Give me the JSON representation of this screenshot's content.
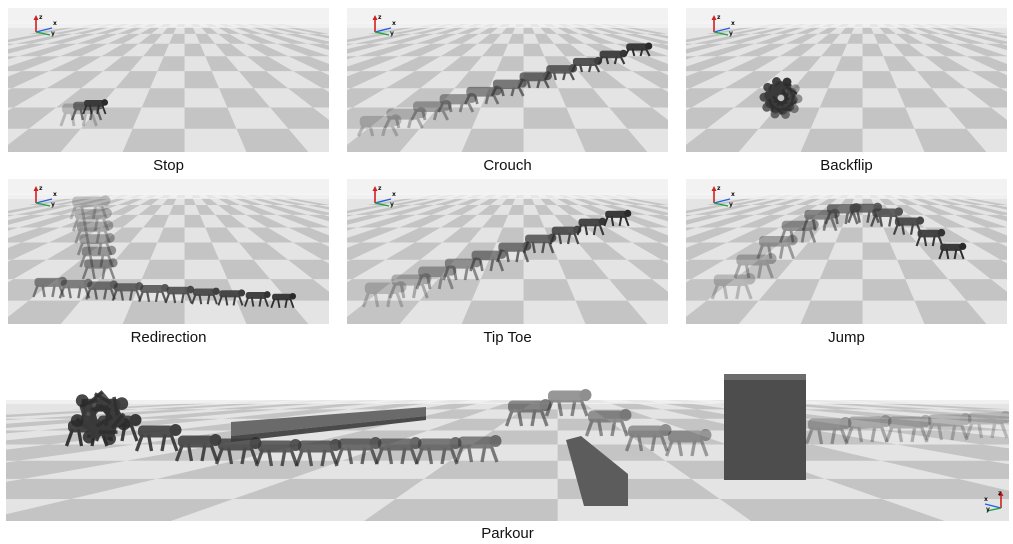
{
  "panels": [
    {
      "id": "stop",
      "caption": "Stop"
    },
    {
      "id": "crouch",
      "caption": "Crouch"
    },
    {
      "id": "backflip",
      "caption": "Backflip"
    },
    {
      "id": "redirection",
      "caption": "Redirection"
    },
    {
      "id": "tip-toe",
      "caption": "Tip Toe"
    },
    {
      "id": "jump",
      "caption": "Jump"
    },
    {
      "id": "parkour",
      "caption": "Parkour"
    }
  ],
  "axes": {
    "x": "x",
    "y": "y",
    "z": "z"
  },
  "colors": {
    "x_axis": "#2060e0",
    "y_axis": "#20a040",
    "z_axis": "#d02020",
    "floor_light": "#e4e4e4",
    "floor_dark": "#c4c4c4",
    "sky": "#f2f2f2",
    "robot": "#3a3a3a"
  }
}
